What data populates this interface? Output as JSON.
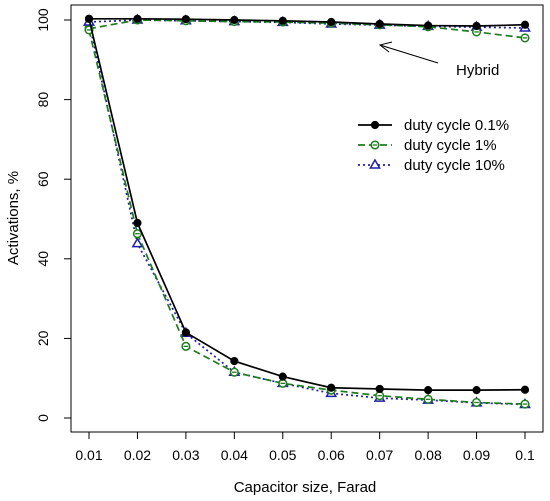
{
  "chart_data": {
    "type": "line",
    "title": "",
    "xlabel": "Capacitor size, Farad",
    "ylabel": "Activations, %",
    "x": [
      0.01,
      0.02,
      0.03,
      0.04,
      0.05,
      0.06,
      0.07,
      0.08,
      0.09,
      0.1
    ],
    "x_tick_labels": [
      "0.01",
      "0.02",
      "0.03",
      "0.04",
      "0.05",
      "0.06",
      "0.07",
      "0.08",
      "0.09",
      "0.1"
    ],
    "y_ticks": [
      0,
      20,
      40,
      60,
      80,
      100
    ],
    "xlim": [
      0.01,
      0.1
    ],
    "ylim": [
      0,
      100
    ],
    "grid": false,
    "legend_position": "upper-right",
    "annotation": "Hybrid",
    "series": [
      {
        "name": "duty cycle 0.1%",
        "group": "upper",
        "color": "#000000",
        "line_style": "solid",
        "marker": "filled-circle",
        "in_legend": true,
        "values": [
          100.3,
          100.3,
          100.2,
          100.0,
          99.8,
          99.5,
          99.0,
          98.6,
          98.5,
          98.8
        ]
      },
      {
        "name": "duty cycle 1%",
        "group": "upper",
        "color": "#1e7b1e",
        "line_style": "dashed",
        "marker": "open-circle",
        "in_legend": true,
        "values": [
          97.8,
          100.0,
          99.8,
          99.6,
          99.5,
          99.2,
          98.8,
          98.3,
          97.0,
          95.5
        ]
      },
      {
        "name": "duty cycle 10%",
        "group": "upper",
        "color": "#1f1fa8",
        "line_style": "dotted",
        "marker": "open-triangle",
        "in_legend": true,
        "values": [
          99.5,
          100.0,
          99.8,
          99.6,
          99.4,
          99.0,
          98.7,
          98.4,
          98.2,
          98.0
        ]
      },
      {
        "name": "duty cycle 0.1%",
        "group": "lower",
        "color": "#000000",
        "line_style": "solid",
        "marker": "filled-circle",
        "in_legend": false,
        "values": [
          100.3,
          49.0,
          21.5,
          14.3,
          10.4,
          7.6,
          7.3,
          7.0,
          7.0,
          7.1
        ]
      },
      {
        "name": "duty cycle 1%",
        "group": "lower",
        "color": "#1e7b1e",
        "line_style": "dashed",
        "marker": "open-circle",
        "in_legend": false,
        "values": [
          97.5,
          46.3,
          18.0,
          11.5,
          8.7,
          7.0,
          5.6,
          4.7,
          3.9,
          3.5
        ]
      },
      {
        "name": "duty cycle 10%",
        "group": "lower",
        "color": "#1f1fa8",
        "line_style": "dotted",
        "marker": "open-triangle",
        "in_legend": false,
        "values": [
          99.5,
          43.8,
          21.3,
          11.5,
          8.7,
          6.2,
          5.0,
          4.5,
          3.8,
          3.4
        ]
      }
    ]
  }
}
